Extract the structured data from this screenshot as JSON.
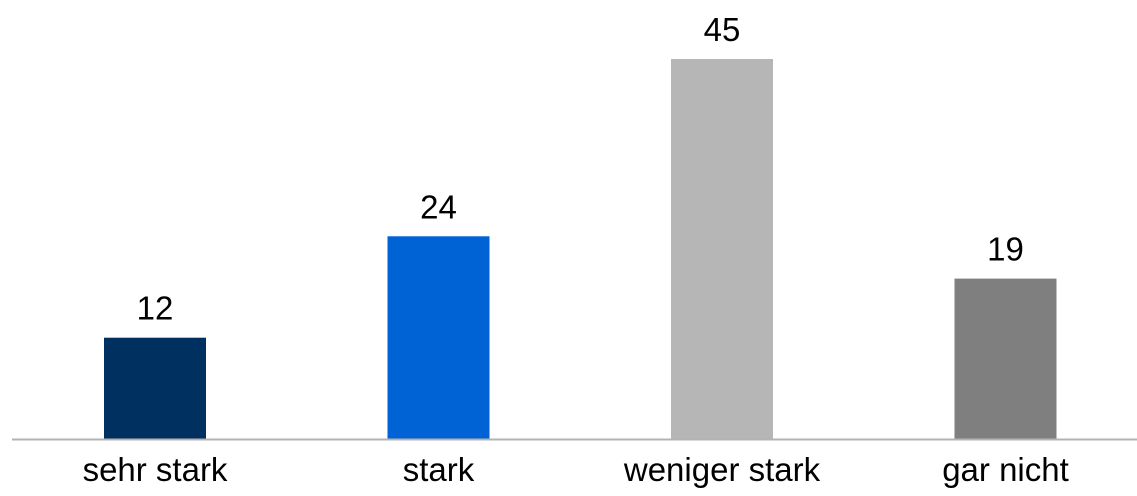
{
  "chart_data": {
    "type": "bar",
    "title": "",
    "xlabel": "",
    "ylabel": "",
    "categories": [
      "sehr stark",
      "stark",
      "weniger stark",
      "gar nicht"
    ],
    "values": [
      12,
      24,
      45,
      19
    ],
    "value_labels": [
      "12",
      "24",
      "45",
      "19"
    ],
    "colors": [
      "#00305f",
      "#0063d5",
      "#b6b6b6",
      "#7f7f7f"
    ],
    "ylim": [
      0,
      50
    ],
    "grid": false,
    "legend": "none"
  }
}
